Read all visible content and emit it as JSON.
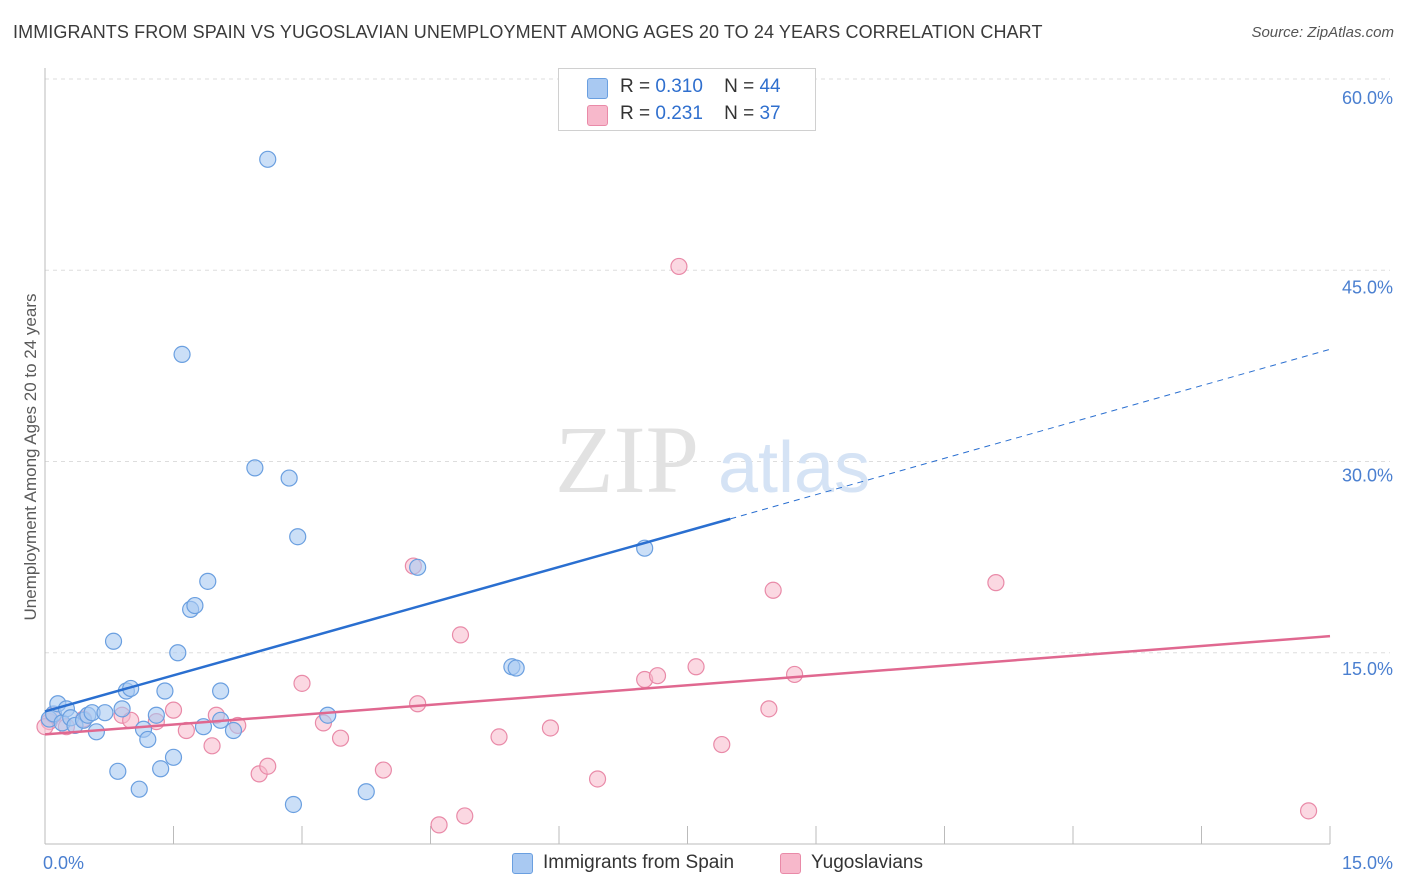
{
  "title": "IMMIGRANTS FROM SPAIN VS YUGOSLAVIAN UNEMPLOYMENT AMONG AGES 20 TO 24 YEARS CORRELATION CHART",
  "source": "Source: ZipAtlas.com",
  "watermark": {
    "zip": "ZIP",
    "atlas": "atlas"
  },
  "legend": [
    {
      "r_label": "R =",
      "r_value": "0.310",
      "n_label": "N =",
      "n_value": "44"
    },
    {
      "r_label": "R =",
      "r_value": "0.231",
      "n_label": "N =",
      "n_value": "37"
    }
  ],
  "bottom_legend": [
    "Immigrants from Spain",
    "Yugoslavians"
  ],
  "colors": {
    "spain_fill": "#a9c9f2",
    "spain_stroke": "#6a9fe0",
    "spain_line": "#2a6fd0",
    "yugo_fill": "#f7b8cb",
    "yugo_stroke": "#e98aa8",
    "yugo_line": "#e06890",
    "grid": "#dddddd",
    "axis_label": "#4a7fd0"
  },
  "chart_data": {
    "type": "scatter",
    "title": "IMMIGRANTS FROM SPAIN VS YUGOSLAVIAN UNEMPLOYMENT AMONG AGES 20 TO 24 YEARS CORRELATION CHART",
    "xlabel": "",
    "ylabel": "Unemployment Among Ages 20 to 24 years",
    "xlim": [
      0,
      15
    ],
    "ylim": [
      0,
      60
    ],
    "x_tick_labels": [
      {
        "value": 0,
        "label": "0.0%"
      },
      {
        "value": 15,
        "label": "15.0%"
      }
    ],
    "y_tick_labels": [
      {
        "value": 15,
        "label": "15.0%"
      },
      {
        "value": 30,
        "label": "30.0%"
      },
      {
        "value": 45,
        "label": "45.0%"
      },
      {
        "value": 60,
        "label": "60.0%"
      }
    ],
    "x_minor_ticks": [
      1.5,
      3.0,
      4.5,
      6.0,
      7.5,
      9.0,
      10.5,
      12.0,
      13.5,
      15.0
    ],
    "y_grid": [
      15,
      30,
      45,
      60
    ],
    "series": [
      {
        "name": "Immigrants from Spain",
        "r": 0.31,
        "n": 44,
        "trend": {
          "x0": 0,
          "y0": 10.4,
          "x1": 8.0,
          "y1": 25.5,
          "dash_x1": 15.0,
          "dash_y1": 38.8
        },
        "points": [
          [
            0.05,
            9.8
          ],
          [
            0.1,
            10.2
          ],
          [
            0.15,
            11.0
          ],
          [
            0.2,
            9.5
          ],
          [
            0.25,
            10.6
          ],
          [
            0.3,
            9.9
          ],
          [
            0.35,
            9.3
          ],
          [
            0.45,
            9.7
          ],
          [
            0.5,
            10.1
          ],
          [
            0.55,
            10.3
          ],
          [
            0.6,
            8.8
          ],
          [
            0.7,
            10.3
          ],
          [
            0.8,
            15.9
          ],
          [
            0.85,
            5.7
          ],
          [
            0.9,
            10.6
          ],
          [
            0.95,
            12.0
          ],
          [
            1.0,
            12.2
          ],
          [
            1.1,
            4.3
          ],
          [
            1.15,
            9.0
          ],
          [
            1.2,
            8.2
          ],
          [
            1.3,
            10.1
          ],
          [
            1.35,
            5.9
          ],
          [
            1.4,
            12.0
          ],
          [
            1.5,
            6.8
          ],
          [
            1.55,
            15.0
          ],
          [
            1.6,
            38.4
          ],
          [
            1.7,
            18.4
          ],
          [
            1.75,
            18.7
          ],
          [
            1.85,
            9.2
          ],
          [
            1.9,
            20.6
          ],
          [
            2.05,
            9.7
          ],
          [
            2.05,
            12.0
          ],
          [
            2.2,
            8.9
          ],
          [
            2.45,
            29.5
          ],
          [
            2.6,
            53.7
          ],
          [
            2.85,
            28.7
          ],
          [
            2.9,
            3.1
          ],
          [
            2.95,
            24.1
          ],
          [
            3.3,
            10.1
          ],
          [
            3.75,
            4.1
          ],
          [
            4.35,
            21.7
          ],
          [
            5.45,
            13.9
          ],
          [
            5.5,
            13.8
          ],
          [
            7.0,
            23.2
          ]
        ]
      },
      {
        "name": "Yugoslavians",
        "r": 0.231,
        "n": 37,
        "trend": {
          "x0": 0,
          "y0": 8.6,
          "x1": 15.0,
          "y1": 16.3
        },
        "points": [
          [
            0.05,
            9.6
          ],
          [
            0.1,
            10.1
          ],
          [
            0.25,
            9.2
          ],
          [
            0.45,
            9.8
          ],
          [
            0.9,
            10.1
          ],
          [
            1.0,
            9.7
          ],
          [
            1.3,
            9.6
          ],
          [
            1.5,
            10.5
          ],
          [
            1.65,
            8.9
          ],
          [
            1.95,
            7.7
          ],
          [
            2.0,
            10.1
          ],
          [
            2.25,
            9.3
          ],
          [
            2.5,
            5.5
          ],
          [
            2.6,
            6.1
          ],
          [
            3.0,
            12.6
          ],
          [
            3.25,
            9.5
          ],
          [
            3.45,
            8.3
          ],
          [
            3.95,
            5.8
          ],
          [
            4.3,
            21.8
          ],
          [
            4.35,
            11.0
          ],
          [
            4.6,
            1.5
          ],
          [
            4.85,
            16.4
          ],
          [
            4.9,
            2.2
          ],
          [
            5.3,
            8.4
          ],
          [
            5.9,
            9.1
          ],
          [
            6.45,
            5.1
          ],
          [
            7.0,
            12.9
          ],
          [
            7.15,
            13.2
          ],
          [
            7.4,
            45.3
          ],
          [
            7.6,
            13.9
          ],
          [
            7.9,
            7.8
          ],
          [
            8.45,
            10.6
          ],
          [
            8.5,
            19.9
          ],
          [
            8.75,
            13.3
          ],
          [
            11.1,
            20.5
          ],
          [
            14.75,
            2.6
          ],
          [
            0.0,
            9.2
          ]
        ]
      }
    ]
  }
}
